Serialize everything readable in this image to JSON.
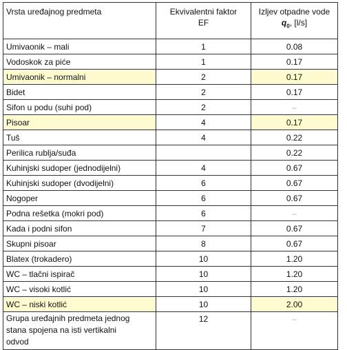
{
  "header": {
    "col1": "Vrsta uređajnog predmeta",
    "col2_line1": "Ekvivalentni faktor",
    "col2_line2": "EF",
    "col3_line1": "Izljev otpadne vode",
    "col3_symbol": "q",
    "col3_subscript": "0",
    "col3_unit": ", [l/s]"
  },
  "rows": [
    {
      "name": "Umivaonik – mali",
      "ef": "1",
      "q": "0.08",
      "highlight": false
    },
    {
      "name": "Vodoskok za piće",
      "ef": "1",
      "q": "0.17",
      "highlight": false
    },
    {
      "name": "Umivaonik – normalni",
      "ef": "2",
      "q": "0.17",
      "highlight": true
    },
    {
      "name": "Bidet",
      "ef": "2",
      "q": "0.17",
      "highlight": false
    },
    {
      "name": "Sifon u podu (suhi pod)",
      "ef": "2",
      "q": "–",
      "highlight": false
    },
    {
      "name": "Pisoar",
      "ef": "4",
      "q": "0.17",
      "highlight": true
    },
    {
      "name": "Tuš",
      "ef": "4",
      "q": "0.22",
      "highlight": false
    },
    {
      "name": "Perilica rublja/suđa",
      "ef": "",
      "q": "0.22",
      "highlight": false
    },
    {
      "name": "Kuhinjski sudoper (jednodijelni)",
      "ef": "4",
      "q": "0.67",
      "highlight": false
    },
    {
      "name": "Kuhinjski sudoper (dvodijelni)",
      "ef": "6",
      "q": "0.67",
      "highlight": false
    },
    {
      "name": "Nogoper",
      "ef": "6",
      "q": "0.67",
      "highlight": false
    },
    {
      "name": "Podna rešetka (mokri pod)",
      "ef": "6",
      "q": "–",
      "highlight": false
    },
    {
      "name": "Kada i podni sifon",
      "ef": "7",
      "q": "0.67",
      "highlight": false
    },
    {
      "name": "Skupni pisoar",
      "ef": "8",
      "q": "0.67",
      "highlight": false
    },
    {
      "name": "Blatex (trokadero)",
      "ef": "10",
      "q": "1.20",
      "highlight": false
    },
    {
      "name": "WC – tlačni ispirač",
      "ef": "10",
      "q": "1.20",
      "highlight": false
    },
    {
      "name": "WC – visoki kotlić",
      "ef": "10",
      "q": "1.20",
      "highlight": false
    },
    {
      "name": "WC – niski kotlić",
      "ef": "10",
      "q": "2.00",
      "highlight": true
    }
  ],
  "last_row": {
    "line1": "Grupa uređajnih predmeta jednog",
    "line2": "stana spojena na isti vertikalni",
    "line3": "odvod",
    "ef": "12",
    "q": "–"
  },
  "colors": {
    "highlight": "#fffbd0",
    "border": "#333333",
    "dash": "#b0b0b0"
  }
}
